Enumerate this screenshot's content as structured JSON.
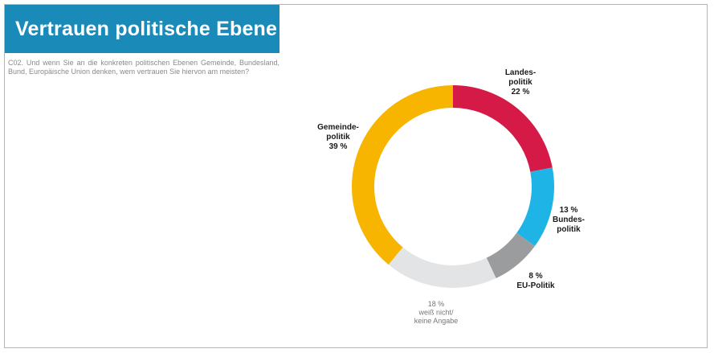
{
  "title": "Vertrauen politische Ebene",
  "question": "C02. Und wenn Sie an die konkreten politischen Ebenen Gemeinde, Bundesland, Bund, Europäische Union denken, wem vertrauen Sie hiervon am meisten?",
  "chart_data": {
    "type": "pie",
    "variant": "donut",
    "slices": [
      {
        "label_lines": [
          "Landes-",
          "politik"
        ],
        "value": 22,
        "value_label": "22 %",
        "color": "#d61a47"
      },
      {
        "label_lines": [
          "Bundes-",
          "politik"
        ],
        "value": 13,
        "value_label": "13 %",
        "color": "#1fb4e6"
      },
      {
        "label_lines": [
          "EU-Politik"
        ],
        "value": 8,
        "value_label": "8 %",
        "color": "#9b9c9e"
      },
      {
        "label_lines": [
          "weiß nicht/",
          "keine Angabe"
        ],
        "value": 18,
        "value_label": "18 %",
        "color": "#e3e4e6"
      },
      {
        "label_lines": [
          "Gemeinde-",
          "politik"
        ],
        "value": 39,
        "value_label": "39 %",
        "color": "#f7b500"
      }
    ]
  }
}
